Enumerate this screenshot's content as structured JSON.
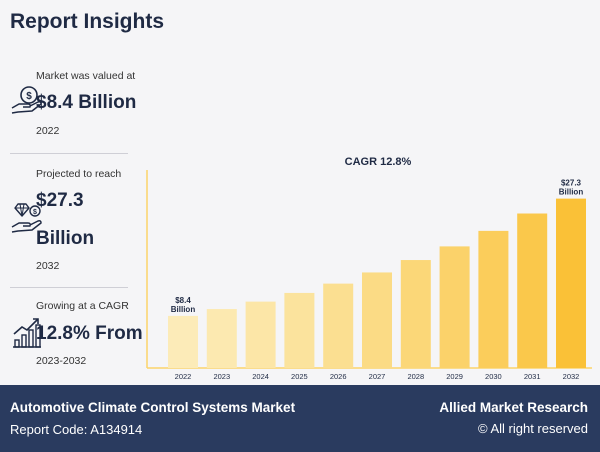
{
  "page": {
    "title": "Report Insights"
  },
  "stats": [
    {
      "caption": "Market was valued at",
      "value": "$8.4 Billion",
      "sub": "2022",
      "icon": "money-hand-icon"
    },
    {
      "caption": "Projected to reach",
      "value_line1": "$27.3",
      "value_line2": "Billion",
      "sub": "2032",
      "icon": "diamond-hand-icon"
    },
    {
      "caption": "Growing at a CAGR",
      "value": "12.8% From",
      "sub": "2023-2032",
      "icon": "growth-chart-icon"
    }
  ],
  "chart_data": {
    "type": "bar",
    "title": "CAGR 12.8%",
    "categories": [
      "2022",
      "2023",
      "2024",
      "2025",
      "2026",
      "2027",
      "2028",
      "2029",
      "2030",
      "2031",
      "2032"
    ],
    "values": [
      8.4,
      9.5,
      10.7,
      12.1,
      13.6,
      15.4,
      17.4,
      19.6,
      22.1,
      24.9,
      27.3
    ],
    "unit": "Billion",
    "annotations": [
      {
        "category": "2022",
        "line1": "$8.4",
        "line2": "Billion"
      },
      {
        "category": "2032",
        "line1": "$27.3",
        "line2": "Billion"
      }
    ],
    "colors": [
      "#fcebb8",
      "#fce9b0",
      "#fce6a7",
      "#fbe39d",
      "#fbdf91",
      "#fbdb85",
      "#fbd778",
      "#fbd26a",
      "#fbcd5b",
      "#fac84b",
      "#fac137"
    ],
    "ylim": [
      0,
      30
    ],
    "grid": false,
    "xlabel": "",
    "ylabel": ""
  },
  "footer": {
    "report_title": "Automotive Climate Control Systems Market",
    "report_code": "Report Code: A134914",
    "brand": "Allied Market Research",
    "rights": "© All right reserved"
  }
}
